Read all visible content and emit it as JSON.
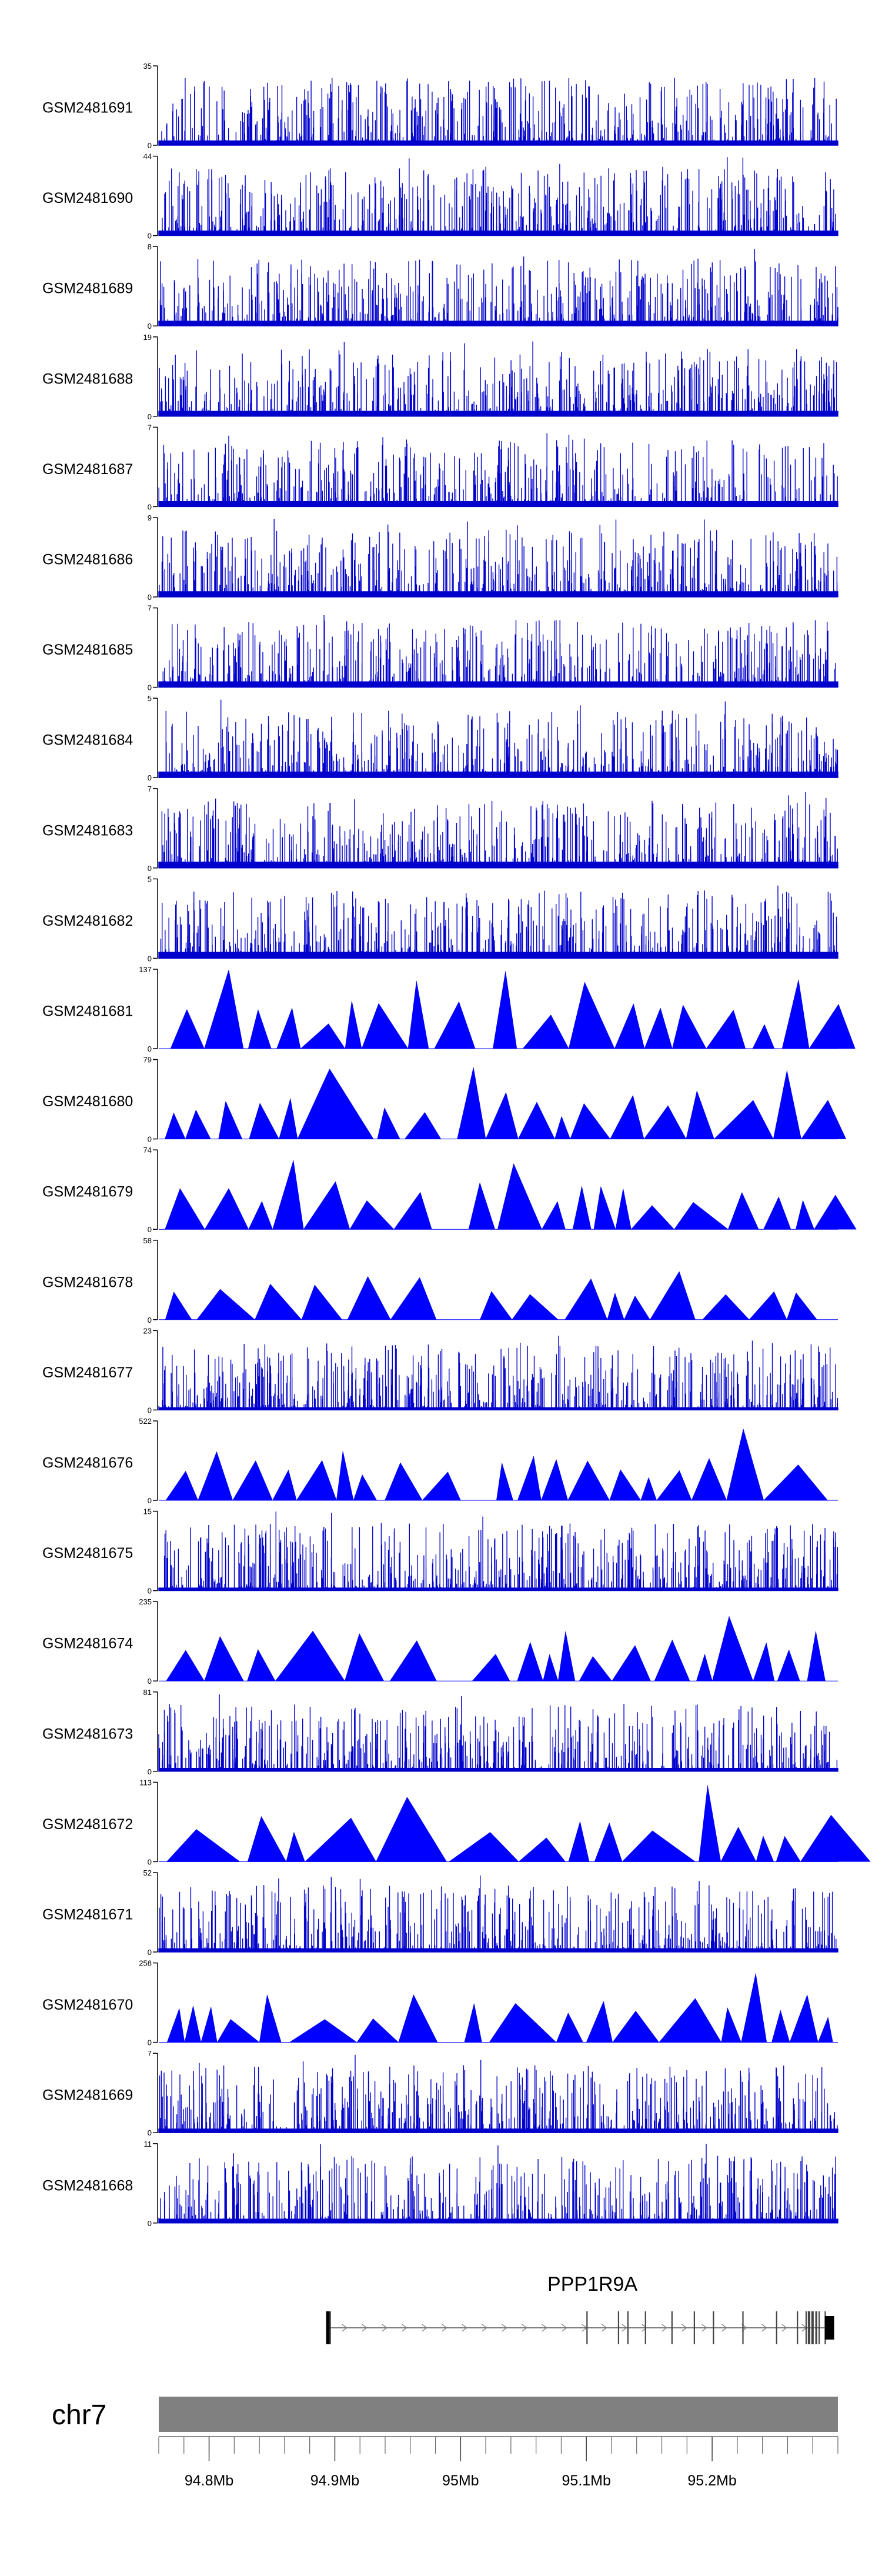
{
  "chart_data": {
    "type": "area",
    "description_mode": "genome-browser coverage tracks",
    "x_unit": "Mb",
    "x_range": [
      94.76,
      95.3
    ],
    "x_ticks": [
      {
        "label": "94.8Mb",
        "value": 94.8
      },
      {
        "label": "94.9Mb",
        "value": 94.9
      },
      {
        "label": "95Mb",
        "value": 95.0
      },
      {
        "label": "95.1Mb",
        "value": 95.1
      },
      {
        "label": "95.2Mb",
        "value": 95.2
      }
    ],
    "chromosome": "chr7",
    "gene": {
      "name": "PPP1R9A",
      "start": 94.894,
      "end": 95.297
    },
    "tracks": [
      {
        "name": "GSM2481691",
        "max": 35,
        "style": "dense"
      },
      {
        "name": "GSM2481690",
        "max": 44,
        "style": "dense"
      },
      {
        "name": "GSM2481689",
        "max": 8,
        "style": "dense"
      },
      {
        "name": "GSM2481688",
        "max": 19,
        "style": "dense"
      },
      {
        "name": "GSM2481687",
        "max": 7,
        "style": "dense"
      },
      {
        "name": "GSM2481686",
        "max": 9,
        "style": "dense"
      },
      {
        "name": "GSM2481685",
        "max": 7,
        "style": "dense"
      },
      {
        "name": "GSM2481684",
        "max": 5,
        "style": "dense"
      },
      {
        "name": "GSM2481683",
        "max": 7,
        "style": "dense"
      },
      {
        "name": "GSM2481682",
        "max": 5,
        "style": "dense"
      },
      {
        "name": "GSM2481681",
        "max": 137,
        "style": "triangles"
      },
      {
        "name": "GSM2481680",
        "max": 79,
        "style": "triangles"
      },
      {
        "name": "GSM2481679",
        "max": 74,
        "style": "triangles"
      },
      {
        "name": "GSM2481678",
        "max": 58,
        "style": "triangles"
      },
      {
        "name": "GSM2481677",
        "max": 23,
        "style": "dense"
      },
      {
        "name": "GSM2481676",
        "max": 522,
        "style": "triangles"
      },
      {
        "name": "GSM2481675",
        "max": 15,
        "style": "dense"
      },
      {
        "name": "GSM2481674",
        "max": 235,
        "style": "triangles"
      },
      {
        "name": "GSM2481673",
        "max": 81,
        "style": "dense"
      },
      {
        "name": "GSM2481672",
        "max": 113,
        "style": "triangles"
      },
      {
        "name": "GSM2481671",
        "max": 52,
        "style": "dense"
      },
      {
        "name": "GSM2481670",
        "max": 258,
        "style": "triangles"
      },
      {
        "name": "GSM2481669",
        "max": 7,
        "style": "dense"
      },
      {
        "name": "GSM2481668",
        "max": 11,
        "style": "dense"
      }
    ],
    "colors": {
      "signal": "#0000cc",
      "signal_fill": "#0000ff",
      "ideogram": "#808080",
      "gene": "#000000",
      "text": "#000000"
    }
  }
}
